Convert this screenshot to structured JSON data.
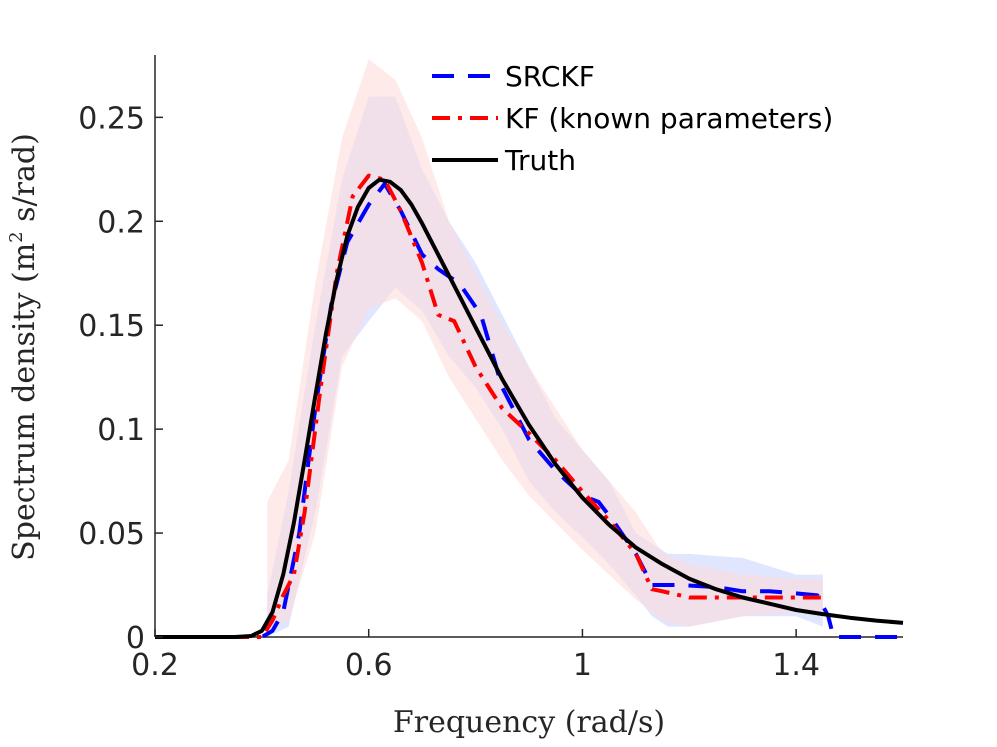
{
  "chart_data": {
    "type": "line",
    "title": "",
    "xlabel": "Frequency (rad/s)",
    "ylabel_main": "Spectrum density (m",
    "ylabel_sup": "2",
    "ylabel_tail": " s/rad)",
    "xlim": [
      0.2,
      1.6
    ],
    "ylim": [
      0,
      0.28
    ],
    "x_ticks": [
      0.2,
      0.6,
      1.0,
      1.4
    ],
    "x_tick_labels": [
      "0.2",
      "0.6",
      "1",
      "1.4"
    ],
    "y_ticks": [
      0,
      0.05,
      0.1,
      0.15,
      0.2,
      0.25
    ],
    "y_tick_labels": [
      "0",
      "0.05",
      "0.1",
      "0.15",
      "0.2",
      "0.25"
    ],
    "legend_position": "top-right",
    "colors": {
      "srckf": "#0000ff",
      "kf": "#ff0000",
      "truth": "#000000",
      "srckf_band": "#c8d2ff",
      "kf_band": "#ffd8d8"
    },
    "series": [
      {
        "name": "SRCKF",
        "style": "dashed",
        "x": [
          0.2,
          0.4,
          0.42,
          0.44,
          0.47,
          0.5,
          0.53,
          0.56,
          0.6,
          0.63,
          0.66,
          0.7,
          0.73,
          0.77,
          0.81,
          0.85,
          0.9,
          0.95,
          1.0,
          1.03,
          1.06,
          1.1,
          1.13,
          1.18,
          1.25,
          1.3,
          1.35,
          1.4,
          1.44,
          1.46,
          1.47,
          1.6
        ],
        "values": [
          0,
          0,
          0.003,
          0.012,
          0.05,
          0.11,
          0.16,
          0.19,
          0.208,
          0.218,
          0.205,
          0.184,
          0.177,
          0.17,
          0.155,
          0.12,
          0.095,
          0.08,
          0.068,
          0.065,
          0.055,
          0.04,
          0.025,
          0.025,
          0.024,
          0.022,
          0.022,
          0.021,
          0.02,
          0.01,
          0,
          0
        ]
      },
      {
        "name": "KF (known parameters)",
        "style": "dashdot",
        "x": [
          0.2,
          0.4,
          0.42,
          0.44,
          0.46,
          0.48,
          0.51,
          0.54,
          0.57,
          0.6,
          0.63,
          0.66,
          0.7,
          0.73,
          0.76,
          0.8,
          0.85,
          0.9,
          0.95,
          1.0,
          1.05,
          1.1,
          1.13,
          1.15,
          1.2,
          1.3,
          1.4,
          1.45
        ],
        "values": [
          0,
          0,
          0.008,
          0.02,
          0.03,
          0.06,
          0.12,
          0.175,
          0.212,
          0.222,
          0.22,
          0.205,
          0.18,
          0.155,
          0.152,
          0.13,
          0.11,
          0.098,
          0.085,
          0.07,
          0.056,
          0.04,
          0.023,
          0.022,
          0.019,
          0.019,
          0.019,
          0.019
        ]
      },
      {
        "name": "Truth",
        "style": "solid",
        "x": [
          0.2,
          0.35,
          0.38,
          0.4,
          0.42,
          0.44,
          0.46,
          0.48,
          0.5,
          0.52,
          0.54,
          0.56,
          0.58,
          0.6,
          0.62,
          0.64,
          0.66,
          0.68,
          0.7,
          0.72,
          0.74,
          0.76,
          0.78,
          0.8,
          0.85,
          0.9,
          0.95,
          1.0,
          1.05,
          1.1,
          1.15,
          1.2,
          1.25,
          1.3,
          1.35,
          1.4,
          1.45,
          1.5,
          1.55,
          1.6
        ],
        "values": [
          0,
          0,
          0.0005,
          0.003,
          0.012,
          0.03,
          0.055,
          0.085,
          0.116,
          0.146,
          0.172,
          0.193,
          0.207,
          0.216,
          0.22,
          0.219,
          0.215,
          0.208,
          0.199,
          0.189,
          0.179,
          0.169,
          0.159,
          0.149,
          0.124,
          0.102,
          0.083,
          0.067,
          0.054,
          0.043,
          0.035,
          0.028,
          0.023,
          0.019,
          0.016,
          0.013,
          0.011,
          0.0093,
          0.0079,
          0.0068
        ]
      }
    ],
    "bands": [
      {
        "name": "SRCKF band",
        "x": [
          0.41,
          0.45,
          0.5,
          0.55,
          0.6,
          0.65,
          0.7,
          0.75,
          0.8,
          0.85,
          0.9,
          0.95,
          1.0,
          1.05,
          1.1,
          1.13,
          1.16,
          1.2,
          1.3,
          1.4,
          1.45
        ],
        "upper": [
          0.02,
          0.07,
          0.15,
          0.22,
          0.26,
          0.26,
          0.225,
          0.2,
          0.18,
          0.155,
          0.13,
          0.105,
          0.09,
          0.075,
          0.05,
          0.045,
          0.04,
          0.04,
          0.038,
          0.03,
          0.03
        ],
        "lower": [
          0,
          0.005,
          0.06,
          0.135,
          0.152,
          0.168,
          0.157,
          0.135,
          0.12,
          0.1,
          0.075,
          0.06,
          0.048,
          0.035,
          0.02,
          0.01,
          0.005,
          0.005,
          0.01,
          0.01,
          0.005
        ]
      },
      {
        "name": "KF band",
        "x": [
          0.41,
          0.45,
          0.5,
          0.55,
          0.6,
          0.65,
          0.7,
          0.75,
          0.8,
          0.85,
          0.9,
          0.95,
          1.0,
          1.05,
          1.1,
          1.15,
          1.2,
          1.3,
          1.4,
          1.45
        ],
        "upper": [
          0.065,
          0.085,
          0.17,
          0.24,
          0.278,
          0.268,
          0.24,
          0.2,
          0.175,
          0.15,
          0.13,
          0.11,
          0.09,
          0.075,
          0.06,
          0.04,
          0.035,
          0.03,
          0.028,
          0.028
        ],
        "lower": [
          0.005,
          0.008,
          0.05,
          0.13,
          0.158,
          0.163,
          0.152,
          0.125,
          0.105,
          0.085,
          0.068,
          0.055,
          0.042,
          0.03,
          0.018,
          0.008,
          0.005,
          0.01,
          0.012,
          0.01
        ]
      }
    ]
  }
}
